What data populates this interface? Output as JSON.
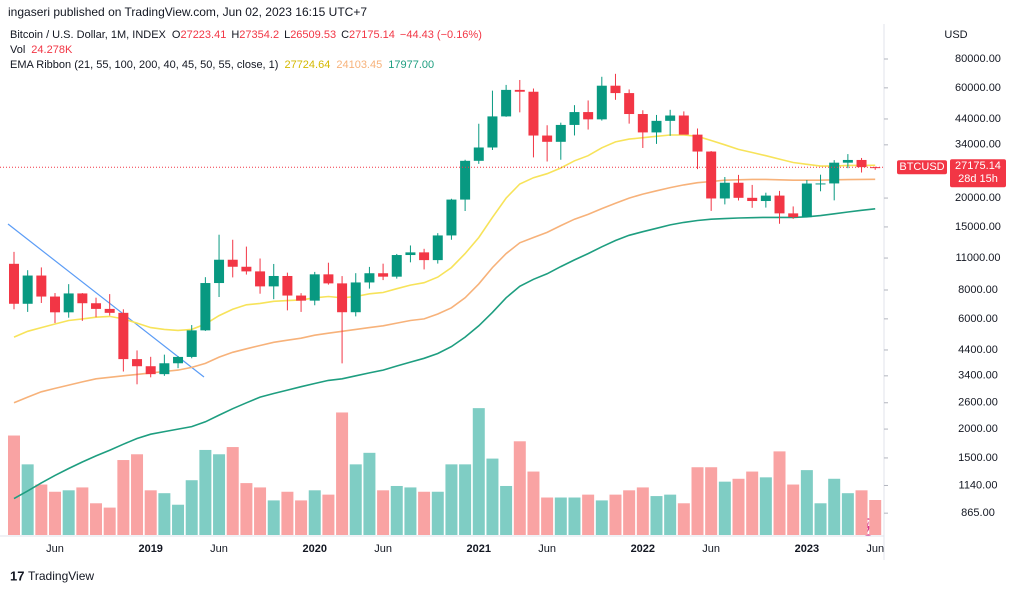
{
  "chart_data": {
    "type": "candlestick",
    "published": "ingaseri published on TradingView.com, Jun 02, 2023 16:15 UTC+7",
    "title": "Bitcoin / U.S. Dollar, 1M, INDEX",
    "ohlc_letters": [
      "O",
      "H",
      "L",
      "C"
    ],
    "change": "−44.43 (−0.16%)",
    "volume_label": "Vol",
    "volume_value_label": "24.278K",
    "ema_label": "EMA Ribbon (21, 55, 100, 200, 40, 45, 50, 55, close, 1)",
    "ema_value_labels": [
      "27724.64",
      "24103.45",
      "17977.00"
    ],
    "currency": "USD",
    "symbol": "BTCUSD",
    "countdown": "28d 15h",
    "brand": "TradingView",
    "up_color": "#089981",
    "down_color": "#f23645",
    "volume_up_color": "#7fcdc4",
    "volume_down_color": "#f9a3a3",
    "log_scale": true,
    "grid": false,
    "categories": [
      null,
      null,
      null,
      "Jun",
      null,
      null,
      null,
      null,
      null,
      null,
      "2019",
      null,
      null,
      null,
      null,
      "Jun",
      null,
      null,
      null,
      null,
      null,
      null,
      "2020",
      null,
      null,
      null,
      null,
      "Jun",
      null,
      null,
      null,
      null,
      null,
      null,
      "2021",
      null,
      null,
      null,
      null,
      "Jun",
      null,
      null,
      null,
      null,
      null,
      null,
      "2022",
      null,
      null,
      null,
      null,
      "Jun",
      null,
      null,
      null,
      null,
      null,
      null,
      "2023",
      null,
      null,
      null,
      null,
      "Jun"
    ],
    "open": [
      10385,
      6973,
      9240,
      7494,
      6404,
      7730,
      7011,
      6626,
      6371,
      4017,
      3742,
      3458,
      3854,
      4105,
      5350,
      8574,
      10817,
      10085,
      9630,
      8293,
      9199,
      7569,
      7194,
      9350,
      8545,
      6410,
      8625,
      9454,
      9136,
      11335,
      11640,
      10776,
      13780,
      19700,
      28990,
      33110,
      45140,
      58790,
      57720,
      37300,
      35040,
      41460,
      47130,
      43830,
      61300,
      56950,
      46220,
      38480,
      43180,
      45540,
      37640,
      31800,
      19920,
      23300,
      20050,
      19420,
      20500,
      17170,
      16540,
      23120,
      23140,
      28460,
      29240,
      27223.41
    ],
    "high": [
      11700,
      9745,
      10020,
      7760,
      8480,
      7760,
      7410,
      7680,
      6600,
      4380,
      4110,
      4200,
      4140,
      5640,
      9090,
      13880,
      13200,
      12330,
      10950,
      10370,
      9510,
      7750,
      9580,
      10500,
      9190,
      9460,
      10070,
      10400,
      11460,
      12470,
      12060,
      14100,
      19860,
      29300,
      41950,
      58350,
      61780,
      64900,
      59600,
      41330,
      42400,
      50500,
      52920,
      67000,
      69000,
      59050,
      47990,
      45800,
      48200,
      47450,
      40000,
      31960,
      24670,
      25200,
      22800,
      21100,
      21480,
      18400,
      23950,
      25250,
      29190,
      31000,
      29830,
      27354.2
    ],
    "low": [
      6600,
      6430,
      7030,
      5755,
      6070,
      5880,
      6100,
      6200,
      3550,
      3125,
      3350,
      3400,
      3670,
      4050,
      5320,
      7460,
      9070,
      9330,
      7710,
      7300,
      6530,
      6430,
      6870,
      8440,
      3850,
      6150,
      8110,
      8830,
      8960,
      10540,
      9820,
      10410,
      13200,
      17580,
      28130,
      32300,
      44950,
      47000,
      30000,
      28800,
      29300,
      37330,
      39600,
      43300,
      53250,
      42000,
      32950,
      34320,
      37200,
      37700,
      26700,
      17600,
      18780,
      19520,
      18150,
      18190,
      15480,
      16260,
      16500,
      21400,
      19550,
      26940,
      25800,
      26509.53
    ],
    "close": [
      6973,
      9240,
      7494,
      6404,
      7730,
      7011,
      6626,
      6371,
      4017,
      3742,
      3458,
      3854,
      4105,
      5350,
      8574,
      10817,
      10085,
      9630,
      8293,
      9199,
      7569,
      7194,
      9350,
      8545,
      6410,
      8625,
      9454,
      9136,
      11335,
      11640,
      10776,
      13780,
      19700,
      28990,
      33110,
      45140,
      58790,
      57720,
      37300,
      35040,
      41460,
      47130,
      43830,
      61300,
      56950,
      46220,
      38480,
      43180,
      45540,
      37640,
      31800,
      19920,
      23300,
      20050,
      19420,
      20500,
      17170,
      16540,
      23120,
      23140,
      28460,
      29240,
      27220,
      27175.14
    ],
    "volume": [
      69,
      49,
      35,
      30,
      31,
      33,
      22,
      19,
      52,
      56,
      31,
      29,
      21,
      38,
      59,
      56,
      61,
      36,
      33,
      24,
      30,
      24,
      31,
      28,
      85,
      49,
      57,
      31,
      34,
      33,
      30,
      30,
      49,
      49,
      88,
      53,
      34,
      65,
      44,
      26,
      26,
      26,
      28,
      24,
      28,
      31,
      33,
      27,
      28,
      22,
      47,
      47,
      37,
      39,
      44,
      40,
      58,
      35,
      45,
      22,
      39,
      29,
      31,
      24.278
    ],
    "volume_ylim": [
      0,
      120
    ],
    "ema": [
      {
        "name": "EMA 21",
        "color": "#f7e35a",
        "values": [
          5000,
          5300,
          5500,
          5700,
          5900,
          6000,
          6100,
          6150,
          6000,
          5750,
          5500,
          5400,
          5350,
          5400,
          5700,
          6200,
          6600,
          6900,
          7000,
          7150,
          7200,
          7250,
          7400,
          7500,
          7400,
          7500,
          7700,
          7800,
          8100,
          8400,
          8600,
          9100,
          10000,
          11500,
          13500,
          16500,
          20000,
          23000,
          24500,
          25500,
          27000,
          29000,
          30500,
          33000,
          35000,
          36000,
          36500,
          37000,
          37500,
          37500,
          37000,
          35500,
          34000,
          32500,
          31500,
          30500,
          29500,
          28500,
          28000,
          27500,
          27500,
          27700,
          27700,
          27724.64
        ]
      },
      {
        "name": "EMA 55",
        "color": "#f7b27a",
        "values": [
          2600,
          2750,
          2900,
          3000,
          3100,
          3200,
          3300,
          3350,
          3400,
          3450,
          3500,
          3550,
          3600,
          3700,
          3850,
          4100,
          4300,
          4450,
          4600,
          4750,
          4850,
          4950,
          5100,
          5200,
          5300,
          5400,
          5500,
          5600,
          5750,
          5900,
          6000,
          6300,
          6700,
          7400,
          8500,
          10000,
          11500,
          12800,
          13500,
          14200,
          15200,
          16200,
          17000,
          18000,
          19000,
          20000,
          20800,
          21500,
          22200,
          22800,
          23300,
          23600,
          23900,
          24000,
          24100,
          24100,
          24000,
          23900,
          23900,
          23900,
          24000,
          24050,
          24100,
          24103.45
        ]
      },
      {
        "name": "EMA 100",
        "color": "#1e9e80",
        "values": [
          1000,
          1080,
          1170,
          1260,
          1350,
          1440,
          1530,
          1620,
          1720,
          1820,
          1900,
          1950,
          2000,
          2050,
          2150,
          2300,
          2450,
          2600,
          2750,
          2850,
          2950,
          3050,
          3150,
          3250,
          3300,
          3400,
          3500,
          3600,
          3750,
          3900,
          4050,
          4250,
          4550,
          5000,
          5600,
          6400,
          7400,
          8300,
          8900,
          9400,
          10100,
          10800,
          11500,
          12300,
          13100,
          13800,
          14300,
          14800,
          15300,
          15700,
          16000,
          16200,
          16300,
          16400,
          16450,
          16500,
          16500,
          16500,
          16600,
          16800,
          17100,
          17400,
          17700,
          17977
        ]
      }
    ],
    "ylim": [
      800,
      100000
    ],
    "yticks": [
      {
        "value": 80000,
        "label": "80000.00"
      },
      {
        "value": 60000,
        "label": "60000.00"
      },
      {
        "value": 44000,
        "label": "44000.00"
      },
      {
        "value": 34000,
        "label": "34000.00"
      },
      {
        "value": 20000,
        "label": "20000.00"
      },
      {
        "value": 15000,
        "label": "15000.00"
      },
      {
        "value": 11000,
        "label": "11000.00"
      },
      {
        "value": 8000,
        "label": "8000.00"
      },
      {
        "value": 6000,
        "label": "6000.00"
      },
      {
        "value": 4400,
        "label": "4400.00"
      },
      {
        "value": 3400,
        "label": "3400.00"
      },
      {
        "value": 2600,
        "label": "2600.00"
      },
      {
        "value": 2000,
        "label": "2000.00"
      },
      {
        "value": 1500,
        "label": "1500.00"
      },
      {
        "value": 1140,
        "label": "1140.00"
      },
      {
        "value": 865,
        "label": "865.00"
      }
    ]
  }
}
